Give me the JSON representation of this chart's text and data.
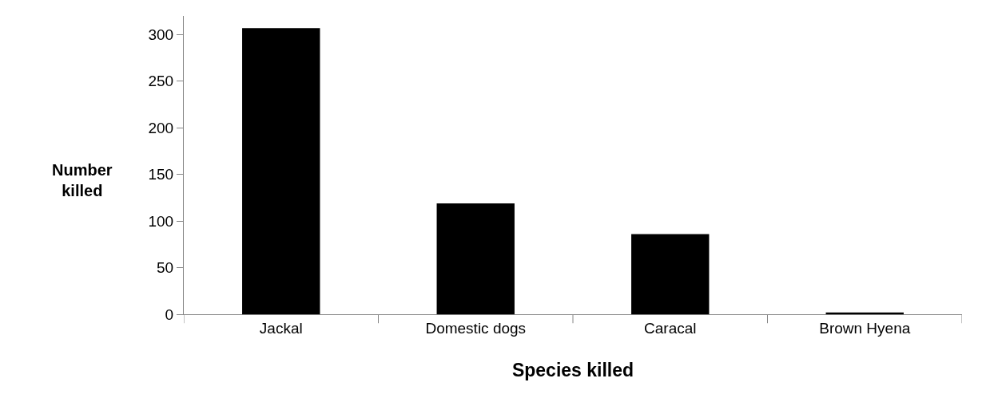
{
  "chart_data": {
    "type": "bar",
    "xlabel": "Species killed",
    "ylabel": "Number killed",
    "categories": [
      "Jackal",
      "Domestic dogs",
      "Caracal",
      "Brown Hyena"
    ],
    "values": [
      307,
      119,
      86,
      2
    ],
    "color": "#000000",
    "ylim": [
      0,
      320
    ],
    "yticks": [
      0,
      50,
      100,
      150,
      200,
      250,
      300
    ]
  }
}
